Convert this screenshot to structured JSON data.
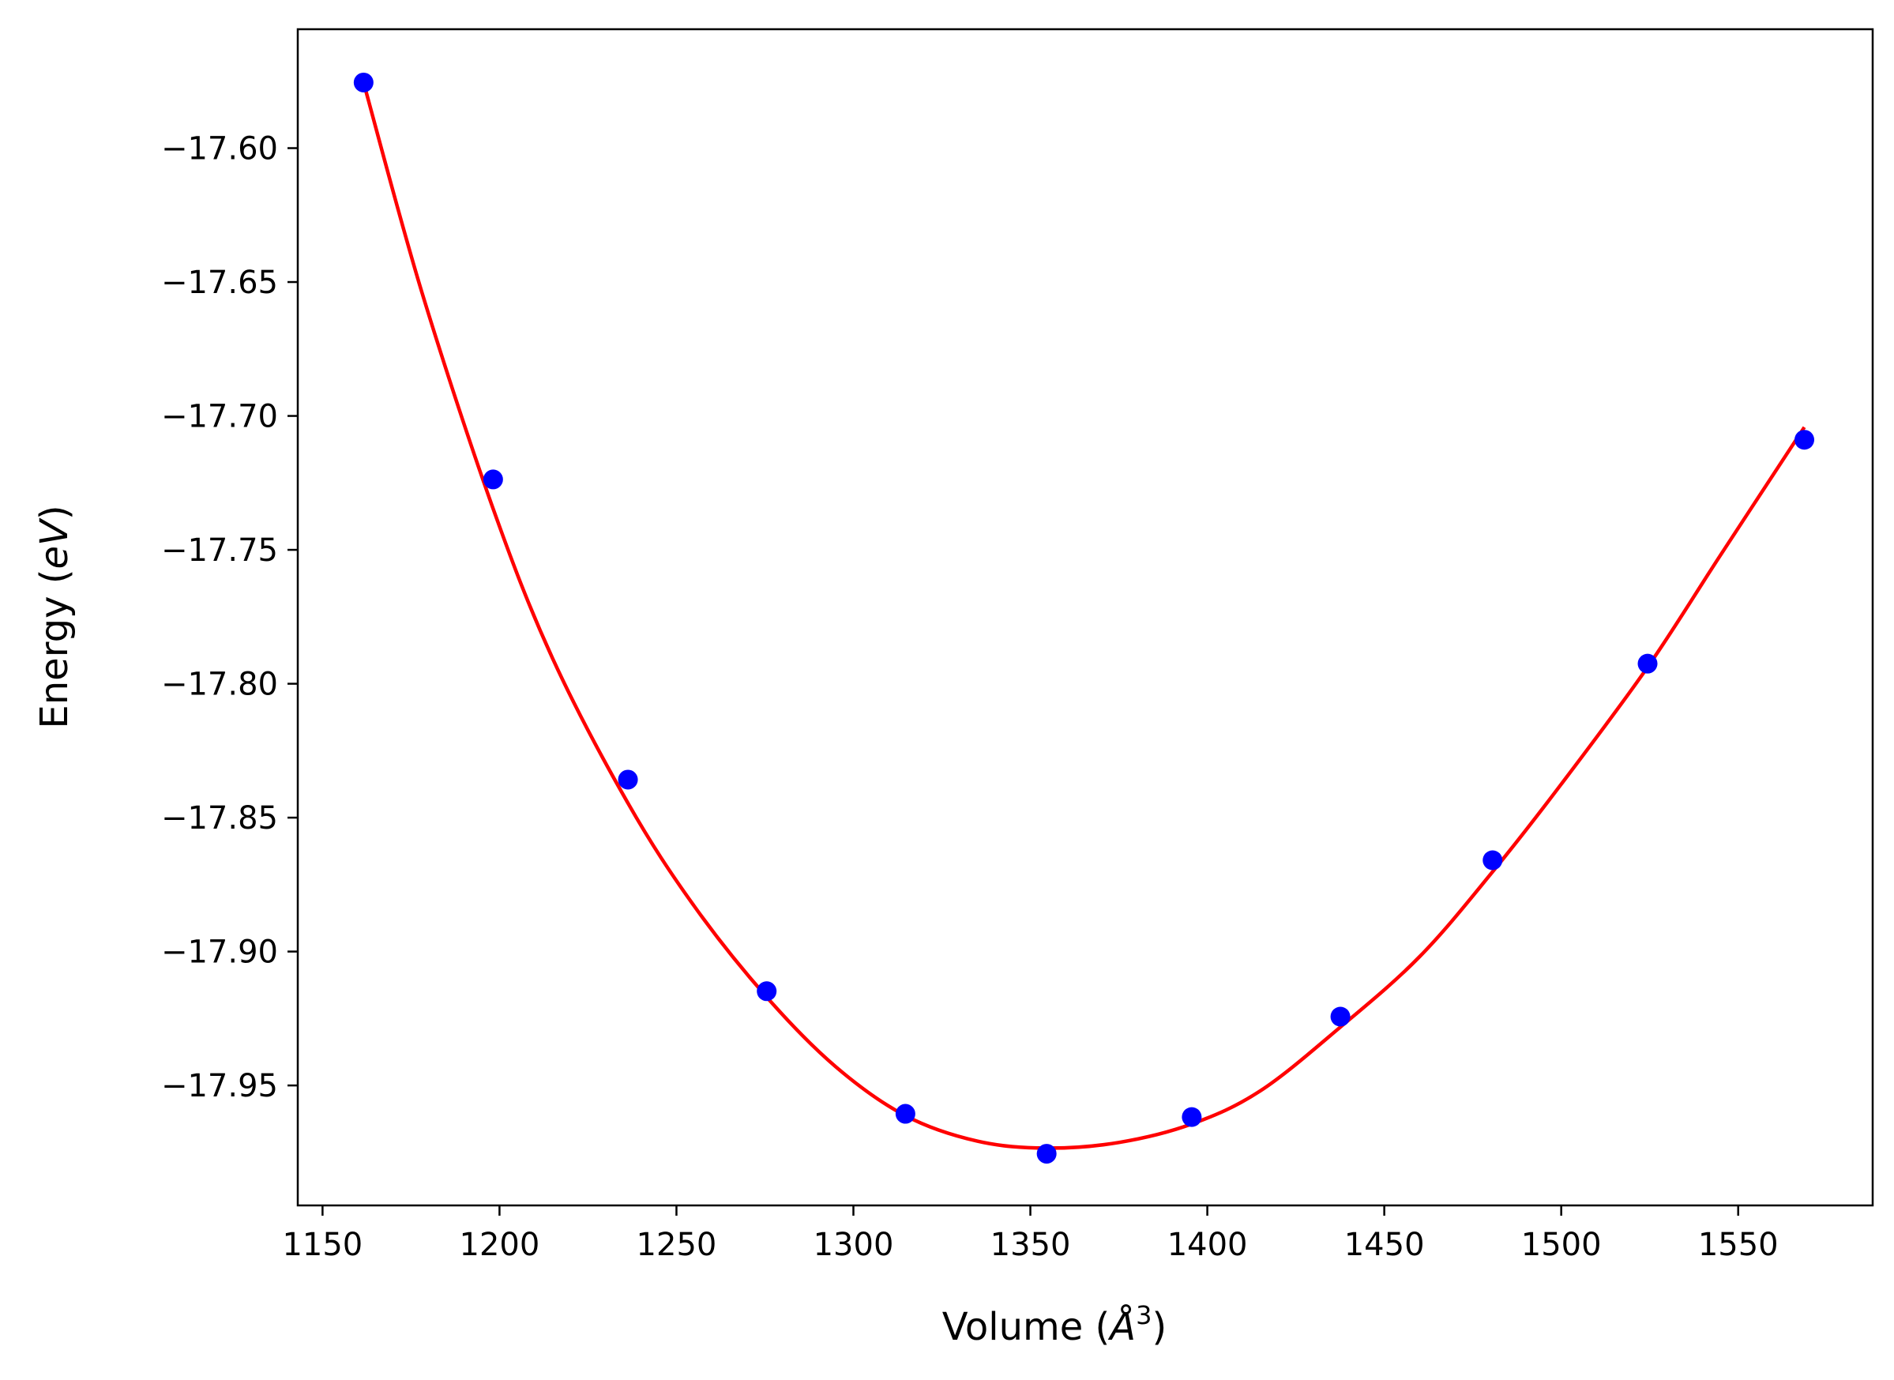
{
  "chart_data": {
    "type": "scatter",
    "title": "",
    "xlabel": "Volume (Å³)",
    "xlabel_parts": {
      "prefix": "Volume (",
      "symbol": "Å",
      "exponent": "3",
      "suffix": ")"
    },
    "ylabel": "Energy (eV)",
    "ylabel_parts": {
      "prefix": "Energy (",
      "unit": "eV",
      "suffix": ")"
    },
    "xlim": [
      1143,
      1588
    ],
    "ylim": [
      -17.9948,
      -17.5556
    ],
    "x_ticks": [
      1150,
      1200,
      1250,
      1300,
      1350,
      1400,
      1450,
      1500,
      1550
    ],
    "x_tick_labels": [
      "1150",
      "1200",
      "1250",
      "1300",
      "1350",
      "1400",
      "1450",
      "1500",
      "1550"
    ],
    "y_ticks": [
      -17.6,
      -17.65,
      -17.7,
      -17.75,
      -17.8,
      -17.85,
      -17.9,
      -17.95
    ],
    "y_tick_labels": [
      "−17.60",
      "−17.65",
      "−17.70",
      "−17.75",
      "−17.80",
      "−17.85",
      "−17.90",
      "−17.95"
    ],
    "grid": false,
    "legend": "none",
    "series": [
      {
        "kind": "points",
        "color": "#0000ff",
        "x": [
          1161.6,
          1198.2,
          1236.3,
          1275.5,
          1314.7,
          1354.6,
          1395.6,
          1437.6,
          1480.6,
          1524.4,
          1568.7
        ],
        "y": [
          -17.5755,
          -17.7237,
          -17.8358,
          -17.9148,
          -17.9606,
          -17.9755,
          -17.9618,
          -17.9243,
          -17.8659,
          -17.7925,
          -17.7089
        ]
      },
      {
        "kind": "line",
        "color": "#ff0000",
        "x": [
          1161.6,
          1178,
          1198.2,
          1215,
          1236.3,
          1255,
          1275.5,
          1295,
          1314.7,
          1335,
          1354.6,
          1375,
          1395.6,
          1415,
          1437.6,
          1460,
          1480.6,
          1500,
          1524.4,
          1545,
          1568.7
        ],
        "y": [
          -17.5755,
          -17.6535,
          -17.7346,
          -17.7905,
          -17.8446,
          -17.883,
          -17.917,
          -17.943,
          -17.9613,
          -17.9708,
          -17.9734,
          -17.9713,
          -17.9644,
          -17.952,
          -17.9282,
          -17.9019,
          -17.8702,
          -17.8375,
          -17.7938,
          -17.752,
          -17.7042
        ]
      }
    ]
  }
}
